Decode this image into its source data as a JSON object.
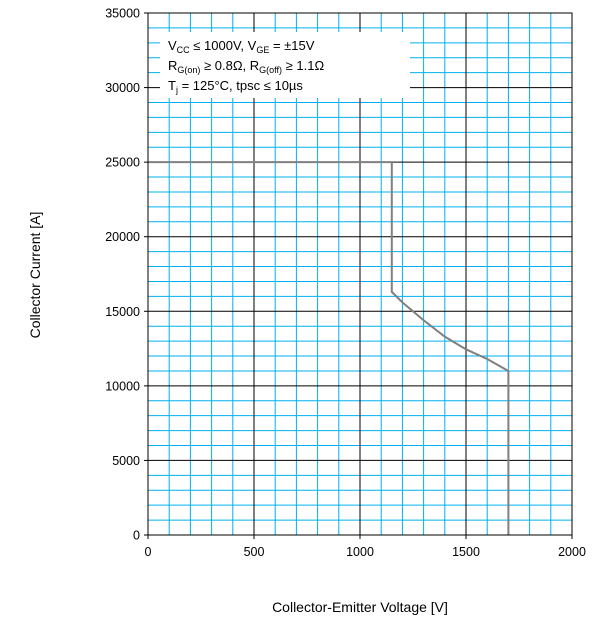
{
  "chart_data": {
    "type": "line",
    "title": "",
    "xlabel": "Collector-Emitter Voltage [V]",
    "ylabel": "Collector Current [A]",
    "xlim": [
      0,
      2000
    ],
    "ylim": [
      0,
      35000
    ],
    "x_ticks": [
      0,
      500,
      1000,
      1500,
      2000
    ],
    "y_ticks": [
      0,
      5000,
      10000,
      15000,
      20000,
      25000,
      30000,
      35000
    ],
    "x_tick_labels": [
      "0",
      "500",
      "1000",
      "1500",
      "2000"
    ],
    "y_tick_labels": [
      "0",
      "5000",
      "10000",
      "15000",
      "20000",
      "25000",
      "30000",
      "35000"
    ],
    "grid": true,
    "grid_color": "#00b0f0",
    "line_color": "#808080",
    "series": [
      {
        "points": [
          [
            0,
            25000
          ],
          [
            1150,
            25000
          ],
          [
            1150,
            16300
          ],
          [
            1200,
            15600
          ],
          [
            1300,
            14400
          ],
          [
            1400,
            13300
          ],
          [
            1500,
            12450
          ],
          [
            1600,
            11800
          ],
          [
            1700,
            11000
          ],
          [
            1700,
            0
          ]
        ]
      }
    ],
    "annotation": {
      "line1": {
        "v": "V",
        "cc": "CC",
        "rest1": " ≤ 1000V, V",
        "ge": "GE",
        "rest2": " = ±15V"
      },
      "line2": {
        "r1": "R",
        "gon": "G(on)",
        "rest1": " ≥ 0.8Ω, R",
        "goff": "G(off)",
        "rest2": " ≥ 1.1Ω"
      },
      "line3": {
        "t": "T",
        "j": "j",
        "rest1": " = 125°C, tpsc ≤ 10µs"
      }
    }
  }
}
